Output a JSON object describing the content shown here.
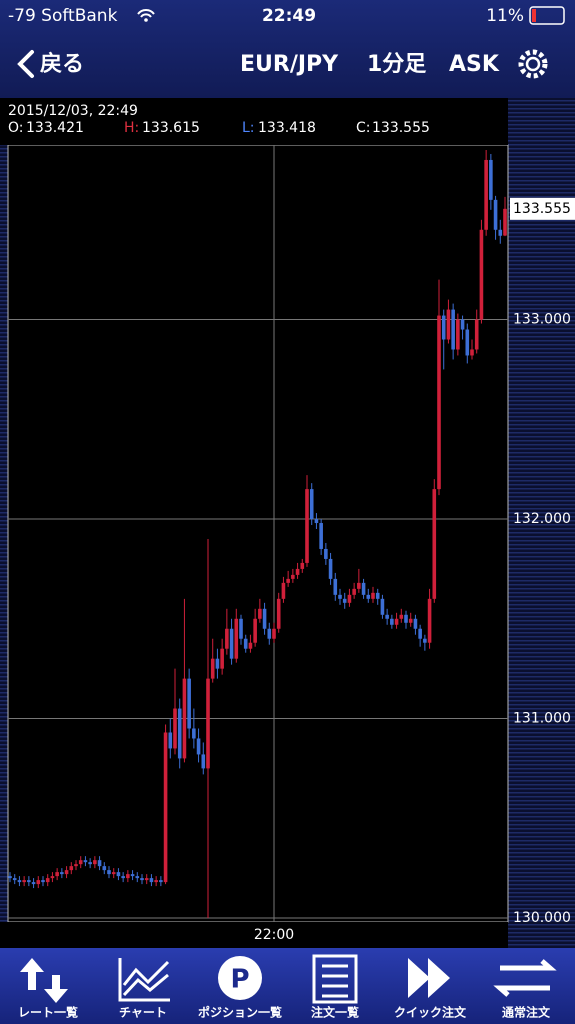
{
  "status_bar": {
    "carrier": "-79 SoftBank",
    "time": "22:49",
    "battery": "11%"
  },
  "header": {
    "back": "戻る",
    "pair": "EUR/JPY",
    "timeframe": "1分足",
    "side": "ASK"
  },
  "info": {
    "datetime": "2015/12/03, 22:49",
    "open_label": "O:",
    "high_label": "H:",
    "low_label": "L:",
    "close_label": "C:"
  },
  "chart_data": {
    "type": "candlestick",
    "up_color": "#d0203a",
    "down_color": "#3d6fd6",
    "grid": true,
    "ylim": [
      129.98,
      133.875
    ],
    "yticks": [
      {
        "value": 130,
        "label": "130.000"
      },
      {
        "value": 131,
        "label": "131.000"
      },
      {
        "value": 132,
        "label": "132.000"
      },
      {
        "value": 133,
        "label": "133.000"
      }
    ],
    "categories": [
      null,
      null,
      null,
      null,
      null,
      null,
      null,
      null,
      null,
      null,
      null,
      null,
      null,
      null,
      null,
      null,
      null,
      null,
      null,
      null,
      null,
      null,
      null,
      null,
      null,
      null,
      null,
      null,
      null,
      null,
      null,
      null,
      null,
      null,
      null,
      null,
      null,
      null,
      null,
      null,
      null,
      null,
      null,
      null,
      null,
      null,
      null,
      null,
      null,
      null,
      null,
      null,
      null,
      null,
      null,
      null,
      "22:00",
      null,
      null,
      null,
      null,
      null,
      null,
      null,
      null,
      null,
      null,
      null,
      null,
      null,
      null,
      null,
      null,
      null,
      null,
      null,
      null,
      null,
      null,
      null,
      null,
      null,
      null,
      null,
      null,
      null,
      null,
      null,
      null,
      null,
      null,
      null,
      null,
      null,
      null,
      null,
      null,
      null,
      null,
      null,
      null,
      null,
      null,
      null,
      null,
      null
    ],
    "open": [
      130.21,
      130.2,
      130.19,
      130.18,
      130.19,
      130.18,
      130.17,
      130.19,
      130.18,
      130.2,
      130.21,
      130.23,
      130.22,
      130.24,
      130.26,
      130.27,
      130.29,
      130.28,
      130.27,
      130.29,
      130.26,
      130.24,
      130.22,
      130.23,
      130.21,
      130.2,
      130.22,
      130.21,
      130.2,
      130.19,
      130.2,
      130.18,
      130.19,
      130.18,
      130.93,
      130.85,
      131.05,
      130.8,
      131.2,
      130.95,
      130.9,
      130.82,
      130.75,
      131.2,
      131.3,
      131.25,
      131.35,
      131.45,
      131.3,
      131.5,
      131.4,
      131.35,
      131.38,
      131.5,
      131.55,
      131.45,
      131.4,
      131.45,
      131.6,
      131.68,
      131.7,
      131.72,
      131.75,
      131.78,
      132.15,
      132.0,
      131.98,
      131.85,
      131.8,
      131.7,
      131.62,
      131.6,
      131.58,
      131.62,
      131.65,
      131.68,
      131.62,
      131.6,
      131.63,
      131.6,
      131.52,
      131.5,
      131.47,
      131.5,
      131.52,
      131.48,
      131.5,
      131.45,
      131.4,
      131.38,
      131.6,
      132.15,
      133.02,
      132.9,
      133.05,
      132.85,
      133.0,
      132.95,
      132.82,
      132.85,
      133.0,
      133.45,
      133.8,
      133.6,
      133.45,
      133.421
    ],
    "high": [
      130.23,
      130.22,
      130.21,
      130.21,
      130.21,
      130.2,
      130.21,
      130.21,
      130.22,
      130.23,
      130.25,
      130.25,
      130.26,
      130.28,
      130.29,
      130.31,
      130.31,
      130.3,
      130.31,
      130.31,
      130.28,
      130.26,
      130.25,
      130.25,
      130.23,
      130.24,
      130.24,
      130.23,
      130.22,
      130.22,
      130.22,
      130.21,
      130.21,
      130.97,
      131.0,
      131.25,
      131.1,
      131.6,
      131.25,
      131.05,
      130.95,
      130.88,
      131.9,
      131.4,
      131.35,
      131.4,
      131.55,
      131.5,
      131.55,
      131.52,
      131.42,
      131.42,
      131.55,
      131.6,
      131.58,
      131.48,
      131.48,
      131.63,
      131.71,
      131.74,
      131.75,
      131.78,
      131.8,
      132.22,
      132.18,
      132.03,
      132.0,
      131.88,
      131.83,
      131.73,
      131.65,
      131.63,
      131.65,
      131.68,
      131.75,
      131.7,
      131.65,
      131.66,
      131.65,
      131.62,
      131.55,
      131.52,
      131.53,
      131.55,
      131.54,
      131.53,
      131.52,
      131.47,
      131.42,
      131.65,
      132.2,
      133.2,
      133.05,
      133.1,
      133.08,
      133.03,
      133.02,
      132.98,
      132.9,
      133.05,
      133.5,
      133.85,
      133.83,
      133.62,
      133.5,
      133.615
    ],
    "low": [
      130.18,
      130.17,
      130.16,
      130.16,
      130.16,
      130.15,
      130.15,
      130.16,
      130.16,
      130.18,
      130.19,
      130.2,
      130.2,
      130.22,
      130.24,
      130.25,
      130.26,
      130.25,
      130.25,
      130.24,
      130.22,
      130.2,
      130.2,
      130.19,
      130.18,
      130.18,
      130.19,
      130.18,
      130.17,
      130.17,
      130.16,
      130.16,
      130.16,
      130.17,
      130.8,
      130.82,
      130.75,
      130.78,
      130.9,
      130.85,
      130.78,
      130.72,
      130.0,
      131.18,
      131.2,
      131.22,
      131.32,
      131.27,
      131.28,
      131.37,
      131.33,
      131.33,
      131.36,
      131.48,
      131.42,
      131.37,
      131.38,
      131.43,
      131.58,
      131.66,
      131.68,
      131.7,
      131.73,
      131.76,
      131.97,
      131.95,
      131.82,
      131.77,
      131.67,
      131.59,
      131.57,
      131.55,
      131.56,
      131.6,
      131.63,
      131.6,
      131.58,
      131.58,
      131.57,
      131.5,
      131.47,
      131.45,
      131.45,
      131.48,
      131.45,
      131.46,
      131.42,
      131.36,
      131.34,
      131.35,
      131.58,
      132.12,
      132.75,
      132.88,
      132.8,
      132.82,
      132.9,
      132.78,
      132.8,
      132.83,
      132.98,
      133.42,
      133.55,
      133.4,
      133.38,
      133.418
    ],
    "close": [
      130.2,
      130.19,
      130.18,
      130.19,
      130.18,
      130.17,
      130.19,
      130.18,
      130.2,
      130.21,
      130.23,
      130.22,
      130.24,
      130.26,
      130.27,
      130.29,
      130.28,
      130.27,
      130.29,
      130.26,
      130.24,
      130.22,
      130.23,
      130.21,
      130.2,
      130.22,
      130.21,
      130.2,
      130.19,
      130.2,
      130.18,
      130.19,
      130.18,
      130.93,
      130.85,
      131.05,
      130.8,
      131.2,
      130.95,
      130.9,
      130.82,
      130.75,
      131.2,
      131.3,
      131.25,
      131.35,
      131.45,
      131.3,
      131.5,
      131.4,
      131.35,
      131.38,
      131.5,
      131.55,
      131.45,
      131.4,
      131.45,
      131.6,
      131.68,
      131.7,
      131.72,
      131.75,
      131.78,
      132.15,
      132.0,
      131.98,
      131.85,
      131.8,
      131.7,
      131.62,
      131.6,
      131.58,
      131.62,
      131.65,
      131.68,
      131.62,
      131.6,
      131.63,
      131.6,
      131.52,
      131.5,
      131.47,
      131.5,
      131.52,
      131.48,
      131.5,
      131.45,
      131.4,
      131.38,
      131.6,
      132.15,
      133.02,
      132.9,
      133.05,
      132.85,
      133.0,
      132.95,
      132.82,
      132.85,
      133.0,
      133.45,
      133.8,
      133.6,
      133.45,
      133.42,
      133.555
    ]
  },
  "tabs": [
    "レート一覧",
    "チャート",
    "ポジション一覧",
    "注文一覧",
    "クイック注文",
    "通常注文"
  ]
}
